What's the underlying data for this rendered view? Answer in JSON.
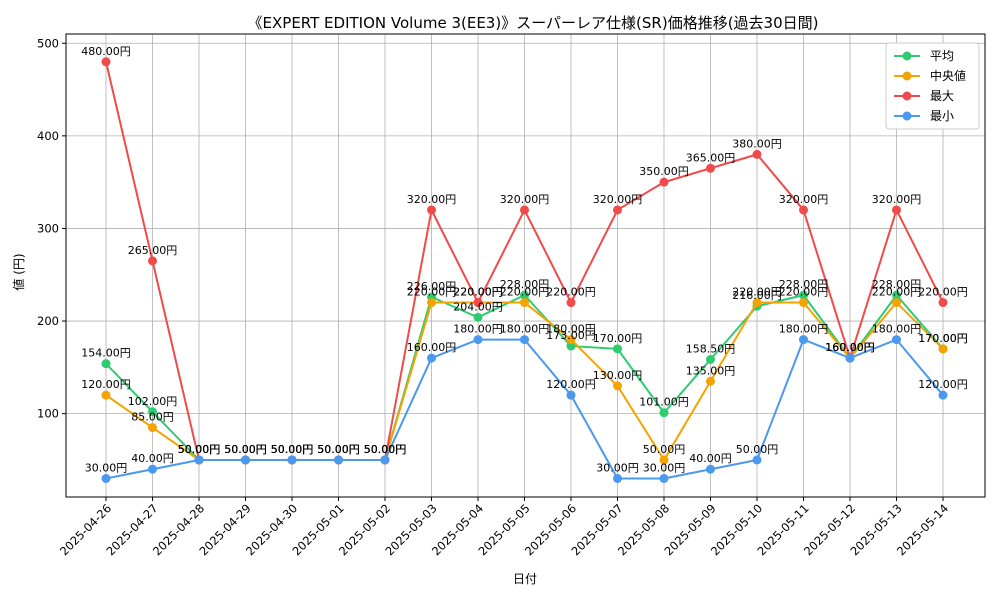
{
  "chart_data": {
    "type": "line",
    "title": "《EXPERT EDITION Volume 3(EE3)》スーパーレア仕様(SR)価格推移(過去30日間)",
    "xlabel": "日付",
    "ylabel": "値 (円)",
    "ylim": [
      10,
      510
    ],
    "yticks": [
      100,
      200,
      300,
      400,
      500
    ],
    "grid": true,
    "legend_position": "top-right",
    "x": [
      "2025-04-26",
      "2025-04-27",
      "2025-04-28",
      "2025-04-29",
      "2025-04-30",
      "2025-05-01",
      "2025-05-02",
      "2025-05-03",
      "2025-05-04",
      "2025-05-05",
      "2025-05-06",
      "2025-05-07",
      "2025-05-08",
      "2025-05-09",
      "2025-05-10",
      "2025-05-11",
      "2025-05-12",
      "2025-05-13",
      "2025-05-14"
    ],
    "series": [
      {
        "name": "平均",
        "color": "#2ecc71",
        "values": [
          154,
          102,
          50,
          50,
          50,
          50,
          50,
          226,
          204,
          228,
          173,
          170,
          101,
          158.5,
          216,
          228,
          160,
          228,
          170
        ],
        "labels": [
          "154.00円",
          "102.00円",
          "50.00円",
          "50.00円",
          "50.00円",
          "50.00円",
          "50.00円",
          "226.00円",
          "204.00円",
          "228.00円",
          "173.00円",
          "170.00円",
          "101.00円",
          "158.50円",
          "216.00円",
          "228.00円",
          "160.00円",
          "228.00円",
          "170.00円"
        ]
      },
      {
        "name": "中央値",
        "color": "#f5a300",
        "values": [
          120,
          85,
          50,
          50,
          50,
          50,
          50,
          220,
          220,
          220,
          180,
          130,
          50,
          135,
          220,
          220,
          160,
          220,
          170
        ],
        "labels": [
          "120.00円",
          "85.00円",
          "50.00円",
          "50.00円",
          "50.00円",
          "50.00円",
          "50.00円",
          "220.00円",
          "220.00円",
          "220.00円",
          "180.00円",
          "130.00円",
          "50.00円",
          "135.00円",
          "220.00円",
          "220.00円",
          "160.00円",
          "220.00円",
          "170.00円"
        ]
      },
      {
        "name": "最大",
        "color": "#f04a4a",
        "values": [
          480,
          265,
          50,
          50,
          50,
          50,
          50,
          320,
          220,
          320,
          220,
          320,
          350,
          365,
          380,
          320,
          160,
          320,
          220
        ],
        "labels": [
          "480.00円",
          "265.00円",
          "50.00円",
          "50.00円",
          "50.00円",
          "50.00円",
          "50.00円",
          "320.00円",
          "220.00円",
          "320.00円",
          "220.00円",
          "320.00円",
          "350.00円",
          "365.00円",
          "380.00円",
          "320.00円",
          "160.00円",
          "320.00円",
          "220.00円"
        ]
      },
      {
        "name": "最小",
        "color": "#4a98f0",
        "values": [
          30,
          40,
          50,
          50,
          50,
          50,
          50,
          160,
          180,
          180,
          120,
          30,
          30,
          40,
          50,
          180,
          160,
          180,
          120
        ],
        "labels": [
          "30.00円",
          "40.00円",
          "50.00円",
          "50.00円",
          "50.00円",
          "50.00円",
          "50.00円",
          "160.00円",
          "180.00円",
          "180.00円",
          "120.00円",
          "30.00円",
          "30.00円",
          "40.00円",
          "50.00円",
          "180.00円",
          "160.00円",
          "180.00円",
          "120.00円"
        ]
      }
    ]
  }
}
